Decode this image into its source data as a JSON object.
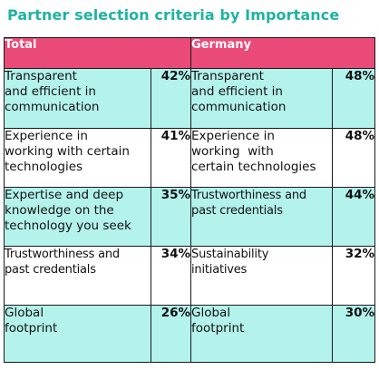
{
  "title": "Partner selection criteria by Importance",
  "columns": {
    "total": "Total",
    "germany": "Germany"
  },
  "colors": {
    "title": "#1fb3a3",
    "header_bg": "#ea4a78",
    "teal_row": "#b3f3ec",
    "white_row": "#ffffff"
  },
  "rows": [
    {
      "total_criterion": [
        "Transparent",
        "and efficient in",
        "communication"
      ],
      "total_pct": "42%",
      "germany_criterion": [
        "Transparent",
        "and efficient in",
        "communication"
      ],
      "germany_pct": "48%"
    },
    {
      "total_criterion": [
        "Experience in",
        "working with certain",
        "technologies"
      ],
      "total_pct": "41%",
      "germany_criterion": [
        "Experience in",
        "working  with",
        "certain technologies"
      ],
      "germany_pct": "48%"
    },
    {
      "total_criterion": [
        "Expertise and deep",
        "knowledge on the",
        "technology you seek"
      ],
      "total_pct": "35%",
      "germany_criterion": [
        "Trustworthiness and",
        "past credentials"
      ],
      "germany_pct": "44%"
    },
    {
      "total_criterion": [
        "Trustworthiness and",
        "past credentials"
      ],
      "total_pct": "34%",
      "germany_criterion": [
        "Sustainability",
        "initiatives"
      ],
      "germany_pct": "32%"
    },
    {
      "total_criterion": [
        "Global",
        "footprint"
      ],
      "total_pct": "26%",
      "germany_criterion": [
        "Global",
        "footprint"
      ],
      "germany_pct": "30%"
    }
  ]
}
